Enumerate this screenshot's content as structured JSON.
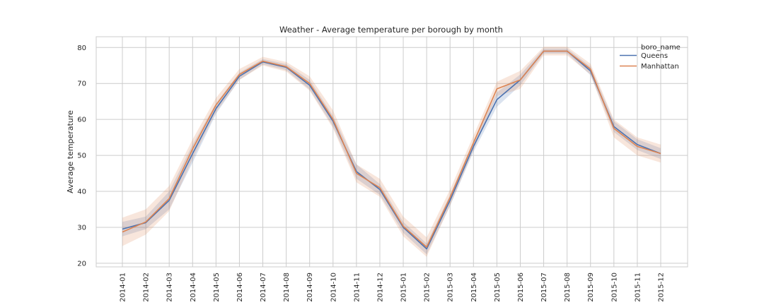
{
  "chart_data": {
    "type": "line",
    "title": "Weather - Average temperature per borough by month",
    "xlabel": "",
    "ylabel": "Average temperature",
    "ylim": [
      19,
      83
    ],
    "yticks": [
      "20",
      "30",
      "40",
      "50",
      "60",
      "70",
      "80"
    ],
    "grid": true,
    "legend": {
      "title": "boro_name",
      "placement": "top-right"
    },
    "categories": [
      "2014-01",
      "2014-02",
      "2014-03",
      "2014-04",
      "2014-05",
      "2014-06",
      "2014-07",
      "2014-08",
      "2014-09",
      "2014-10",
      "2014-11",
      "2014-12",
      "2015-01",
      "2015-02",
      "2015-03",
      "2015-04",
      "2015-05",
      "2015-06",
      "2015-07",
      "2015-08",
      "2015-09",
      "2015-10",
      "2015-11",
      "2015-12"
    ],
    "series": [
      {
        "name": "Queens",
        "color": "#4c72b0",
        "values": [
          29.5,
          31.3,
          37.5,
          50.5,
          63.0,
          72.0,
          76.0,
          74.5,
          69.5,
          59.5,
          45.5,
          40.5,
          30.0,
          24.0,
          37.5,
          52.5,
          65.5,
          71.0,
          79.0,
          79.0,
          73.5,
          58.0,
          53.0,
          50.5
        ],
        "ci_low": [
          27.5,
          29.5,
          35.0,
          48.0,
          61.5,
          71.0,
          75.3,
          73.7,
          68.3,
          58.0,
          43.5,
          39.0,
          28.5,
          22.5,
          36.0,
          51.0,
          63.5,
          69.5,
          78.3,
          78.3,
          72.3,
          56.5,
          51.5,
          49.0
        ],
        "ci_high": [
          31.5,
          33.0,
          40.0,
          53.0,
          64.5,
          73.0,
          76.8,
          75.4,
          71.0,
          61.0,
          47.5,
          42.0,
          31.5,
          25.5,
          39.0,
          54.0,
          67.5,
          72.5,
          79.7,
          79.7,
          74.7,
          59.5,
          54.5,
          52.0
        ]
      },
      {
        "name": "Manhattan",
        "color": "#dd8452",
        "values": [
          28.7,
          31.5,
          38.0,
          51.8,
          64.0,
          72.5,
          76.2,
          74.7,
          70.0,
          60.0,
          45.0,
          41.0,
          30.3,
          24.5,
          38.3,
          53.5,
          68.5,
          71.0,
          79.0,
          79.0,
          74.0,
          57.5,
          52.5,
          50.5
        ],
        "ci_low": [
          24.8,
          28.0,
          34.5,
          49.0,
          62.0,
          71.0,
          75.0,
          73.3,
          68.0,
          57.5,
          42.5,
          38.5,
          27.5,
          21.8,
          36.0,
          51.5,
          66.5,
          68.5,
          77.8,
          77.8,
          72.5,
          55.0,
          50.0,
          48.0
        ],
        "ci_high": [
          32.7,
          35.0,
          41.5,
          54.5,
          66.0,
          74.0,
          77.4,
          76.0,
          72.0,
          62.5,
          47.5,
          43.5,
          33.0,
          27.2,
          40.5,
          55.5,
          70.5,
          73.5,
          80.2,
          80.2,
          75.5,
          60.0,
          55.0,
          53.0
        ]
      }
    ]
  }
}
